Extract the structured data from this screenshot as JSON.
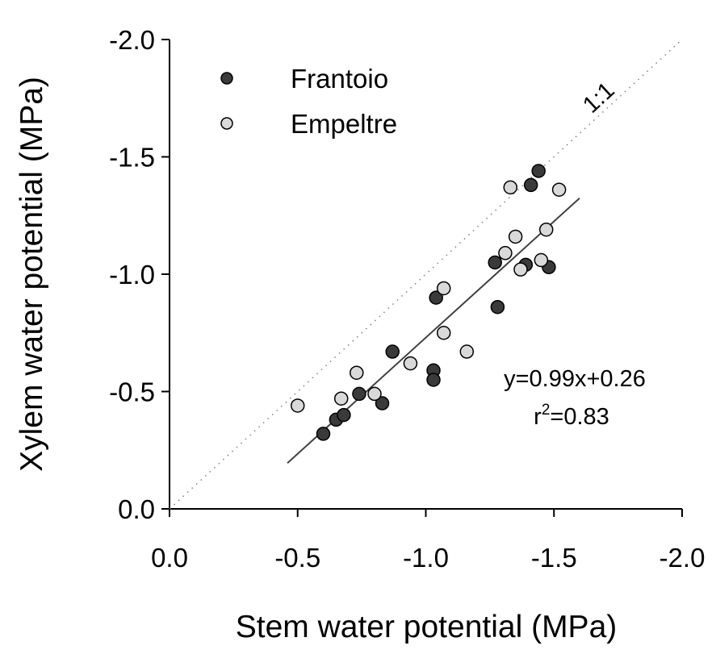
{
  "chart_data": {
    "type": "scatter",
    "xlabel": "Stem water potential (MPa)",
    "ylabel": "Xylem water potential (MPa)",
    "xlim": [
      0,
      -2.0
    ],
    "ylim": [
      0,
      -2.0
    ],
    "xticks": [
      {
        "value": 0,
        "label": "0.0"
      },
      -0.5,
      {
        "value": -1.0,
        "label": "-1.0"
      },
      -1.5,
      {
        "value": -2.0,
        "label": "-2.0"
      }
    ],
    "yticks": [
      {
        "value": 0,
        "label": "0.0"
      },
      -0.5,
      {
        "value": -1.0,
        "label": "-1.0"
      },
      -1.5,
      {
        "value": -2.0,
        "label": "-2.0"
      }
    ],
    "legend": "top-left",
    "series": [
      {
        "name": "Frantoio",
        "color": "#3a3a3a",
        "x": [
          -0.6,
          -0.65,
          -0.68,
          -0.74,
          -0.83,
          -0.87,
          -1.03,
          -1.03,
          -1.04,
          -1.27,
          -1.28,
          -1.41,
          -1.44,
          -1.39,
          -1.48
        ],
        "values": [
          -0.32,
          -0.38,
          -0.4,
          -0.49,
          -0.45,
          -0.67,
          -0.59,
          -0.55,
          -0.9,
          -1.05,
          -0.86,
          -1.38,
          -1.44,
          -1.04,
          -1.03
        ]
      },
      {
        "name": "Empeltre",
        "color": "#d9d9d9",
        "x": [
          -0.5,
          -0.67,
          -0.73,
          -0.8,
          -0.94,
          -1.07,
          -1.07,
          -1.16,
          -1.33,
          -1.31,
          -1.35,
          -1.37,
          -1.47,
          -1.45,
          -1.52
        ],
        "values": [
          -0.44,
          -0.47,
          -0.58,
          -0.49,
          -0.62,
          -0.94,
          -0.75,
          -0.67,
          -1.37,
          -1.09,
          -1.16,
          -1.02,
          -1.19,
          -1.06,
          -1.36
        ]
      }
    ],
    "regression": {
      "x": [
        -0.46,
        -1.6
      ],
      "values": [
        -0.195,
        -1.324
      ],
      "color": "#404040"
    },
    "identity_line": {
      "label": "1:1",
      "color": "#808080"
    },
    "equation": "y=0.99x+0.26",
    "r_squared": {
      "base": "r",
      "sup": "2",
      "rest": "=0.83"
    }
  }
}
